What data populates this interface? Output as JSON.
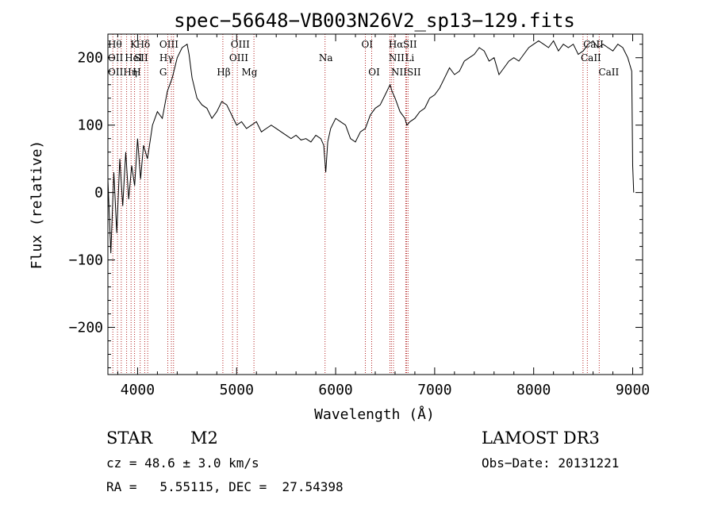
{
  "chart_data": {
    "type": "line",
    "title": "spec−56648−VB003N26V2_sp13−129.fits",
    "xlabel": "Wavelength (Å)",
    "ylabel": "Flux (relative)",
    "xlim": [
      3700,
      9100
    ],
    "ylim": [
      -270,
      235
    ],
    "xticks": [
      4000,
      5000,
      6000,
      7000,
      8000,
      9000
    ],
    "xtick_labels": [
      "4000",
      "5000",
      "6000",
      "7000",
      "8000",
      "9000"
    ],
    "yticks": [
      -200,
      -100,
      0,
      100,
      200
    ],
    "ytick_labels": [
      "−200",
      "−100",
      "0",
      "100",
      "200"
    ],
    "series": [
      {
        "name": "flux",
        "x": [
          3700,
          3730,
          3760,
          3790,
          3820,
          3850,
          3880,
          3910,
          3940,
          3970,
          4000,
          4030,
          4060,
          4100,
          4150,
          4200,
          4250,
          4300,
          4350,
          4400,
          4450,
          4500,
          4520,
          4550,
          4600,
          4650,
          4700,
          4750,
          4800,
          4850,
          4900,
          4950,
          5000,
          5050,
          5100,
          5150,
          5200,
          5250,
          5300,
          5350,
          5400,
          5450,
          5500,
          5550,
          5600,
          5650,
          5700,
          5750,
          5800,
          5850,
          5880,
          5900,
          5920,
          5950,
          6000,
          6050,
          6100,
          6150,
          6200,
          6250,
          6300,
          6350,
          6400,
          6450,
          6500,
          6550,
          6570,
          6600,
          6650,
          6700,
          6720,
          6750,
          6800,
          6850,
          6900,
          6950,
          7000,
          7050,
          7100,
          7150,
          7200,
          7250,
          7300,
          7350,
          7400,
          7450,
          7500,
          7550,
          7600,
          7650,
          7700,
          7750,
          7800,
          7850,
          7900,
          7950,
          8000,
          8050,
          8100,
          8150,
          8200,
          8250,
          8300,
          8350,
          8400,
          8450,
          8500,
          8550,
          8600,
          8650,
          8700,
          8750,
          8800,
          8850,
          8900,
          8950,
          8990,
          9000,
          9010
        ],
        "y": [
          20,
          -90,
          30,
          -60,
          50,
          -20,
          60,
          -10,
          40,
          10,
          80,
          20,
          70,
          50,
          100,
          120,
          110,
          150,
          170,
          200,
          215,
          220,
          205,
          170,
          140,
          130,
          125,
          110,
          120,
          135,
          130,
          115,
          100,
          105,
          95,
          100,
          105,
          90,
          95,
          100,
          95,
          90,
          85,
          80,
          85,
          78,
          80,
          75,
          85,
          80,
          70,
          30,
          75,
          95,
          110,
          105,
          100,
          80,
          75,
          90,
          95,
          115,
          125,
          130,
          145,
          160,
          150,
          140,
          120,
          110,
          100,
          105,
          110,
          120,
          125,
          140,
          145,
          155,
          170,
          185,
          175,
          180,
          195,
          200,
          205,
          215,
          210,
          195,
          200,
          175,
          185,
          195,
          200,
          195,
          205,
          215,
          220,
          225,
          220,
          215,
          225,
          210,
          220,
          215,
          220,
          205,
          210,
          220,
          225,
          215,
          220,
          215,
          210,
          220,
          215,
          200,
          180,
          40,
          0
        ]
      }
    ],
    "lines": [
      {
        "x": 3750,
        "labels": [
          "Hθ",
          "OII"
        ]
      },
      {
        "x": 3797,
        "labels": [
          "Hη"
        ]
      },
      {
        "x": 3835,
        "labels": [
          "Hη"
        ]
      },
      {
        "x": 3889,
        "labels": [
          "HeI"
        ]
      },
      {
        "x": 3934,
        "labels": [
          "K"
        ]
      },
      {
        "x": 3969,
        "labels": [
          "H"
        ]
      },
      {
        "x": 4026,
        "labels": [
          "HeI"
        ]
      },
      {
        "x": 4072,
        "labels": [
          "SII"
        ]
      },
      {
        "x": 4102,
        "labels": [
          "Hδ"
        ]
      },
      {
        "x": 4305,
        "labels": [
          "G"
        ]
      },
      {
        "x": 4341,
        "labels": [
          "Hγ"
        ]
      },
      {
        "x": 4363,
        "labels": [
          "OIII"
        ]
      },
      {
        "x": 4861,
        "labels": [
          "Hβ"
        ]
      },
      {
        "x": 4959,
        "labels": [
          "OIII"
        ]
      },
      {
        "x": 5007,
        "labels": [
          "OIII"
        ]
      },
      {
        "x": 5175,
        "labels": [
          "Mg"
        ]
      },
      {
        "x": 5893,
        "labels": [
          "Na"
        ]
      },
      {
        "x": 6300,
        "labels": [
          "OI"
        ]
      },
      {
        "x": 6364,
        "labels": [
          "OI"
        ]
      },
      {
        "x": 6548,
        "labels": [
          "NII"
        ]
      },
      {
        "x": 6563,
        "labels": [
          "Hα"
        ]
      },
      {
        "x": 6584,
        "labels": [
          "NII"
        ]
      },
      {
        "x": 6708,
        "labels": [
          "Li"
        ]
      },
      {
        "x": 6716,
        "labels": [
          "SII"
        ]
      },
      {
        "x": 6731,
        "labels": [
          "SII"
        ]
      },
      {
        "x": 8498,
        "labels": [
          "CaII"
        ]
      },
      {
        "x": 8542,
        "labels": [
          "CaII"
        ]
      },
      {
        "x": 8662,
        "labels": [
          "CaII"
        ]
      }
    ],
    "line_labels": [
      {
        "text": "Hθ",
        "x": 3700,
        "row": 0
      },
      {
        "text": "K",
        "x": 3925,
        "row": 0
      },
      {
        "text": "Hδ",
        "x": 3985,
        "row": 0
      },
      {
        "text": "OIII",
        "x": 4220,
        "row": 0
      },
      {
        "text": "OIII",
        "x": 4940,
        "row": 0
      },
      {
        "text": "OI",
        "x": 6260,
        "row": 0
      },
      {
        "text": "Hα",
        "x": 6535,
        "row": 0
      },
      {
        "text": "SII",
        "x": 6680,
        "row": 0
      },
      {
        "text": "CaII",
        "x": 8500,
        "row": 0
      },
      {
        "text": "OII",
        "x": 3700,
        "row": 1
      },
      {
        "text": "HeI",
        "x": 3870,
        "row": 1
      },
      {
        "text": "SII",
        "x": 3965,
        "row": 1
      },
      {
        "text": "Hγ",
        "x": 4220,
        "row": 1
      },
      {
        "text": "OIII",
        "x": 4925,
        "row": 1
      },
      {
        "text": "NII",
        "x": 6535,
        "row": 1
      },
      {
        "text": "Li",
        "x": 6700,
        "row": 1
      },
      {
        "text": "CaII",
        "x": 8475,
        "row": 1
      },
      {
        "text": "OIIHη",
        "x": 3700,
        "row": 2
      },
      {
        "text": "H",
        "x": 3950,
        "row": 2
      },
      {
        "text": "G",
        "x": 4220,
        "row": 2
      },
      {
        "text": "Hβ",
        "x": 4800,
        "row": 2
      },
      {
        "text": "Mg",
        "x": 5050,
        "row": 2
      },
      {
        "text": "Na",
        "x": 5830,
        "row": 1
      },
      {
        "text": "OI",
        "x": 6330,
        "row": 2
      },
      {
        "text": "NIISII",
        "x": 6560,
        "row": 2
      },
      {
        "text": "CaII",
        "x": 8655,
        "row": 2
      }
    ]
  },
  "info": {
    "class": "STAR",
    "subclass": "M2",
    "survey": "LAMOST DR3",
    "cz": "cz = 48.6 ± 3.0 km/s",
    "obs_date": "Obs−Date: 20131221",
    "radec": "RA =   5.55115, DEC =  27.54398"
  }
}
